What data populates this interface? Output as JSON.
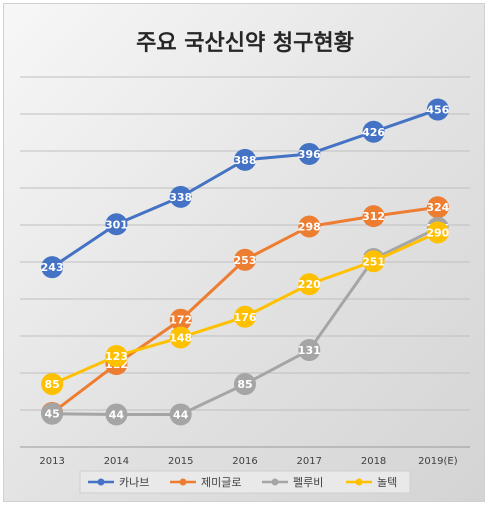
{
  "chart_data": {
    "type": "line",
    "title": "주요 국산신약 청구현황",
    "categories": [
      "2013",
      "2014",
      "2015",
      "2016",
      "2017",
      "2018",
      "2019(E)"
    ],
    "ylim": [
      0,
      500
    ],
    "grid": true,
    "legend_position": "bottom",
    "series": [
      {
        "name": "카나브",
        "color": "#4472c4",
        "values": [
          243,
          301,
          338,
          388,
          396,
          426,
          456
        ]
      },
      {
        "name": "제미글로",
        "color": "#ed7d31",
        "values": [
          46,
          112,
          172,
          253,
          298,
          312,
          324
        ]
      },
      {
        "name": "펠루비",
        "color": "#a5a5a5",
        "values": [
          45,
          44,
          44,
          85,
          131,
          254,
          296
        ]
      },
      {
        "name": "놀텍",
        "color": "#ffc000",
        "values": [
          85,
          123,
          148,
          176,
          220,
          251,
          290
        ]
      }
    ]
  }
}
